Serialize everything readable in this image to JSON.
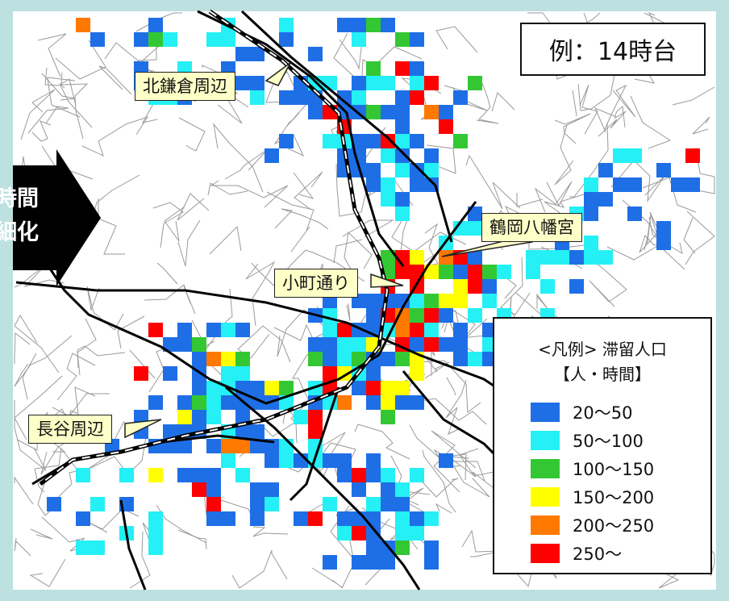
{
  "time_label": "例：14時台",
  "arrow_text": [
    "時間",
    "細化"
  ],
  "callouts": {
    "kita_kamakura": "北鎌倉周辺",
    "tsurugaoka": "鶴岡八幡宮",
    "komachi": "小町通り",
    "hase": "長谷周辺"
  },
  "legend": {
    "title": "<凡例> 滞留人口",
    "unit": "【人・時間】",
    "items": [
      {
        "label": "20〜50",
        "color": "#1e6fe6"
      },
      {
        "label": "50〜100",
        "color": "#24f0f5"
      },
      {
        "label": "100〜150",
        "color": "#33c833"
      },
      {
        "label": "150〜200",
        "color": "#ffff00"
      },
      {
        "label": "200〜250",
        "color": "#ff7800"
      },
      {
        "label": "250〜",
        "color": "#ff0000"
      }
    ]
  },
  "colors": {
    "frame": "#bde0e0",
    "road": "#9a9a9a",
    "highway": "#000000",
    "callout_bg": "#ffffc8"
  }
}
